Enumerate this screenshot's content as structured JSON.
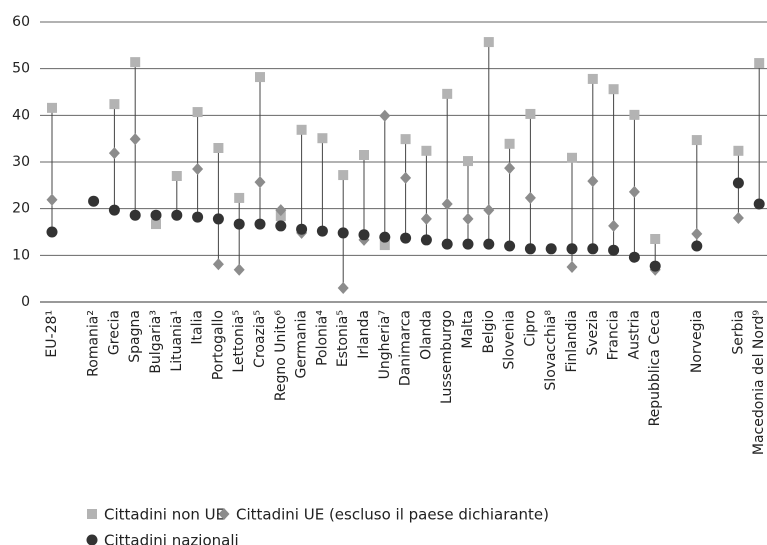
{
  "chart_data": {
    "type": "dot",
    "categories": [
      "EU-28¹",
      null,
      "Romania²",
      "Grecia",
      "Spagna",
      "Bulgaria³",
      "Lituania¹",
      "Italia",
      "Portogallo",
      "Lettonia⁵",
      "Croazia⁵",
      "Regno Unito⁶",
      "Germania",
      "Polonia⁴",
      "Estonia⁵",
      "Irlanda",
      "Ungheria⁷",
      "Danimarca",
      "Olanda",
      "Lussemburgo",
      "Malta",
      "Belgio",
      "Slovenia",
      "Cipro",
      "Slovacchia⁸",
      "Finlandia",
      "Svezia",
      "Francia",
      "Austria",
      "Repubblica Ceca",
      null,
      "Norvegia",
      null,
      "Serbia",
      "Macedonia del Nord⁹"
    ],
    "series": [
      {
        "name": "Cittadini non UE",
        "color": "#b3b3b3",
        "marker": "square",
        "values": [
          41.6,
          null,
          null,
          42.4,
          51.4,
          16.7,
          27.0,
          40.7,
          33.0,
          22.3,
          48.2,
          18.4,
          36.9,
          35.1,
          27.2,
          31.5,
          12.2,
          34.9,
          32.4,
          44.6,
          30.2,
          55.7,
          33.9,
          40.3,
          null,
          30.9,
          47.8,
          45.6,
          40.1,
          13.5,
          null,
          34.7,
          null,
          32.4,
          51.2
        ]
      },
      {
        "name": "Cittadini UE (escluso il paese dichiarante)",
        "color": "#8c8c8c",
        "marker": "diamond",
        "values": [
          21.9,
          null,
          null,
          31.9,
          34.9,
          null,
          null,
          28.5,
          8.1,
          6.9,
          25.7,
          19.7,
          14.8,
          null,
          3.0,
          13.3,
          39.9,
          26.6,
          17.8,
          21.0,
          17.8,
          19.7,
          28.7,
          22.3,
          null,
          7.5,
          25.9,
          16.3,
          23.6,
          6.9,
          null,
          14.6,
          null,
          18.0,
          null
        ]
      },
      {
        "name": "Cittadini nazionali",
        "color": "#333333",
        "marker": "circle",
        "values": [
          15.0,
          null,
          21.6,
          19.7,
          18.6,
          18.6,
          18.6,
          18.2,
          17.8,
          16.7,
          16.7,
          16.3,
          15.6,
          15.2,
          14.8,
          14.4,
          13.9,
          13.7,
          13.3,
          12.4,
          12.4,
          12.4,
          12.0,
          11.4,
          11.4,
          11.4,
          11.4,
          11.1,
          9.6,
          7.7,
          null,
          12.0,
          null,
          25.5,
          21.0
        ]
      }
    ],
    "ylim": [
      0,
      60
    ],
    "yticks": [
      0,
      10,
      20,
      30,
      40,
      50,
      60
    ],
    "grid": true
  }
}
